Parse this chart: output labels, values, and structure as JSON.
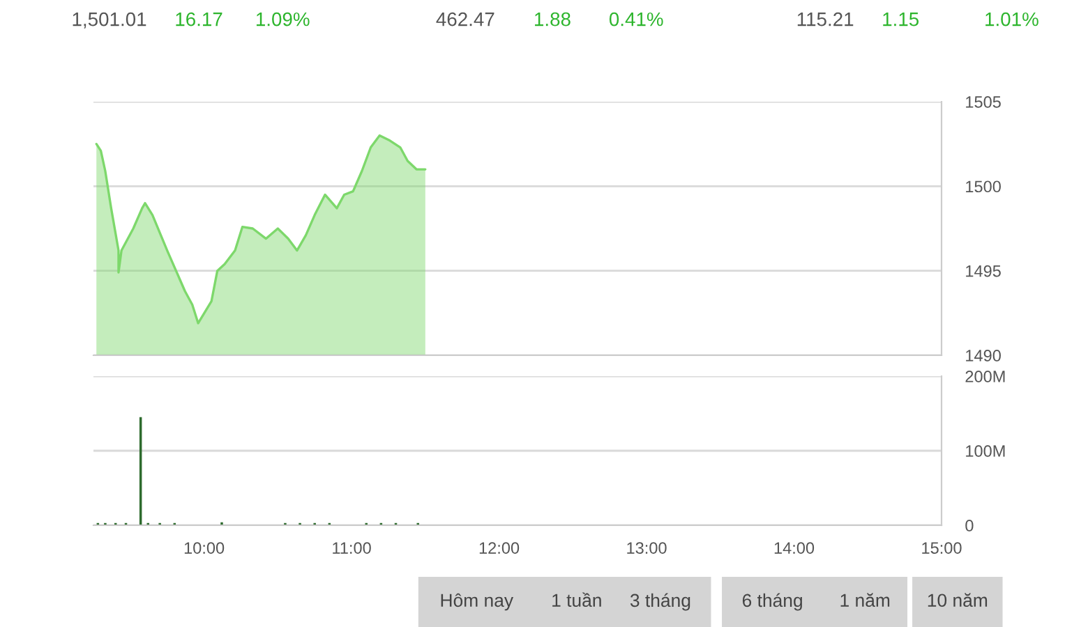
{
  "chart_data": [
    {
      "type": "area",
      "annotations": [
        "1,501.01",
        "16.17",
        "1.09%",
        "462.47",
        "1.88",
        "0.41%",
        "115.21",
        "1.15",
        "1.01%",
        "Hôm nay",
        "1 tuần",
        "3 tháng",
        "6 tháng",
        "1 năm",
        "10 năm"
      ],
      "x": [
        9.27,
        9.3,
        9.33,
        9.37,
        9.42,
        9.42,
        9.44,
        9.52,
        9.58,
        9.6,
        9.65,
        9.75,
        9.81,
        9.87,
        9.92,
        9.96,
        10.05,
        10.09,
        10.14,
        10.21,
        10.26,
        10.33,
        10.42,
        10.5,
        10.57,
        10.63,
        10.69,
        10.75,
        10.82,
        10.9,
        10.95,
        11.01,
        11.07,
        11.13,
        11.19,
        11.26,
        11.33,
        11.38,
        11.44,
        11.5
      ],
      "series": [
        {
          "color": "#7dd86b",
          "values": [
            1502.5,
            1502.1,
            1500.9,
            1498.7,
            1496.2,
            1494.9,
            1496.2,
            1497.5,
            1498.7,
            1499.0,
            1498.3,
            1496.2,
            1495.0,
            1493.8,
            1493.0,
            1491.9,
            1493.2,
            1495.0,
            1495.4,
            1496.2,
            1497.6,
            1497.5,
            1496.9,
            1497.5,
            1496.9,
            1496.2,
            1497.1,
            1498.3,
            1499.5,
            1498.7,
            1499.5,
            1499.7,
            1500.9,
            1502.3,
            1503.0,
            1502.7,
            1502.3,
            1501.5,
            1501.0,
            1501.0
          ]
        }
      ],
      "xlim": [
        9.25,
        15
      ],
      "ylim": [
        1490,
        1505
      ],
      "yticks": [
        1490,
        1495,
        1500,
        1505
      ],
      "grid": "y",
      "tick_labels": "y"
    },
    {
      "type": "bar",
      "x": [
        9.28,
        9.33,
        9.4,
        9.47,
        9.57,
        9.62,
        9.7,
        9.8,
        10.12,
        10.55,
        10.65,
        10.75,
        10.85,
        11.1,
        11.2,
        11.3,
        11.45
      ],
      "series": [
        {
          "color": "#2e6b2e",
          "values": [
            2,
            2,
            2,
            2,
            144,
            2,
            2,
            2,
            3,
            2,
            2,
            2,
            2,
            2,
            2,
            2,
            2
          ]
        }
      ],
      "xlim": [
        9.25,
        15
      ],
      "ylim": [
        0,
        200
      ],
      "yticks": [
        0,
        {
          "value": 100,
          "label": "100M"
        },
        {
          "value": 200,
          "label": "200M"
        }
      ],
      "xticks": [
        {
          "value": 10,
          "label": "10:00"
        },
        {
          "value": 11,
          "label": "11:00"
        },
        {
          "value": 12,
          "label": "12:00"
        },
        {
          "value": 13,
          "label": "13:00"
        },
        {
          "value": 14,
          "label": "14:00"
        },
        {
          "value": 15,
          "label": "15:00"
        }
      ],
      "grid": "y"
    }
  ]
}
